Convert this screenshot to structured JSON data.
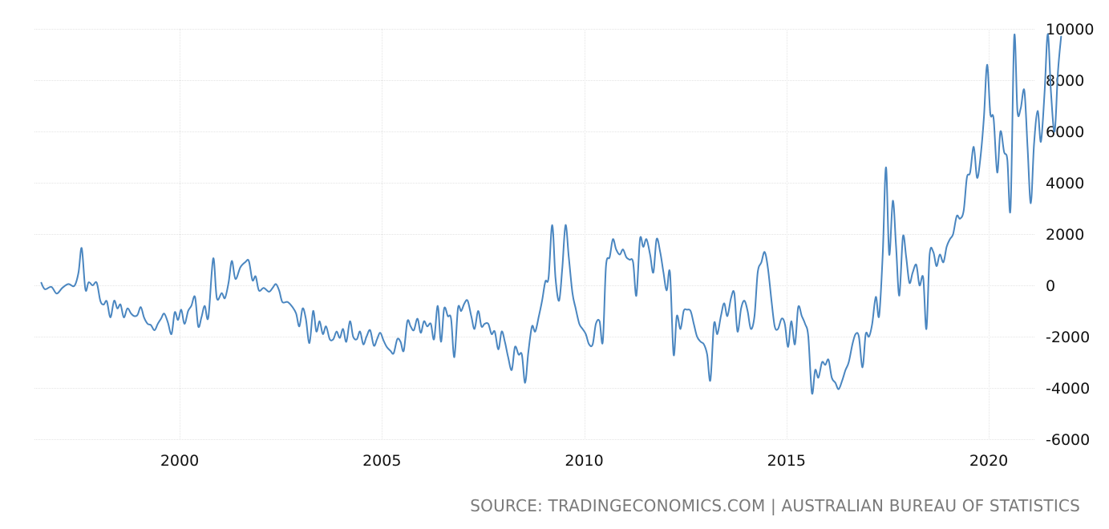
{
  "chart_data": {
    "type": "line",
    "title": "",
    "xlabel": "",
    "ylabel": "",
    "xlim": [
      1996.5,
      2021.6
    ],
    "ylim": [
      -6000,
      10000
    ],
    "x_ticks": [
      2000,
      2005,
      2010,
      2015,
      2020
    ],
    "x_tick_labels": [
      "2000",
      "2005",
      "2010",
      "2015",
      "2020"
    ],
    "y_ticks": [
      10000,
      8000,
      6000,
      4000,
      2000,
      0,
      -2000,
      -4000,
      -6000
    ],
    "y_tick_labels": [
      "10000",
      "8000",
      "6000",
      "4000",
      "2000",
      "0",
      "-2000",
      "-4000",
      "-6000"
    ],
    "grid": true,
    "series": [
      {
        "color": "#4a86c0",
        "points": [
          [
            1996.58,
            100
          ],
          [
            1996.67,
            -150
          ],
          [
            1996.83,
            -60
          ],
          [
            1996.96,
            -320
          ],
          [
            1997.1,
            -100
          ],
          [
            1997.25,
            50
          ],
          [
            1997.4,
            -20
          ],
          [
            1997.5,
            500
          ],
          [
            1997.58,
            1450
          ],
          [
            1997.67,
            -160
          ],
          [
            1997.75,
            120
          ],
          [
            1997.85,
            0
          ],
          [
            1997.95,
            100
          ],
          [
            1998.04,
            -600
          ],
          [
            1998.12,
            -750
          ],
          [
            1998.2,
            -620
          ],
          [
            1998.29,
            -1250
          ],
          [
            1998.38,
            -600
          ],
          [
            1998.46,
            -900
          ],
          [
            1998.54,
            -750
          ],
          [
            1998.62,
            -1250
          ],
          [
            1998.71,
            -900
          ],
          [
            1998.8,
            -1100
          ],
          [
            1998.88,
            -1200
          ],
          [
            1998.96,
            -1150
          ],
          [
            1999.04,
            -850
          ],
          [
            1999.12,
            -1250
          ],
          [
            1999.21,
            -1500
          ],
          [
            1999.29,
            -1550
          ],
          [
            1999.38,
            -1750
          ],
          [
            1999.46,
            -1500
          ],
          [
            1999.54,
            -1300
          ],
          [
            1999.62,
            -1100
          ],
          [
            1999.71,
            -1450
          ],
          [
            1999.8,
            -1900
          ],
          [
            1999.88,
            -1050
          ],
          [
            1999.96,
            -1350
          ],
          [
            2000.04,
            -950
          ],
          [
            2000.12,
            -1500
          ],
          [
            2000.21,
            -1000
          ],
          [
            2000.29,
            -800
          ],
          [
            2000.38,
            -450
          ],
          [
            2000.46,
            -1600
          ],
          [
            2000.54,
            -1250
          ],
          [
            2000.62,
            -800
          ],
          [
            2000.71,
            -1250
          ],
          [
            2000.83,
            1050
          ],
          [
            2000.92,
            -500
          ],
          [
            2001.04,
            -300
          ],
          [
            2001.12,
            -500
          ],
          [
            2001.21,
            100
          ],
          [
            2001.29,
            950
          ],
          [
            2001.38,
            250
          ],
          [
            2001.5,
            700
          ],
          [
            2001.62,
            900
          ],
          [
            2001.71,
            950
          ],
          [
            2001.8,
            200
          ],
          [
            2001.88,
            350
          ],
          [
            2001.96,
            -200
          ],
          [
            2002.08,
            -100
          ],
          [
            2002.21,
            -250
          ],
          [
            2002.3,
            -100
          ],
          [
            2002.38,
            50
          ],
          [
            2002.46,
            -200
          ],
          [
            2002.54,
            -650
          ],
          [
            2002.67,
            -650
          ],
          [
            2002.79,
            -850
          ],
          [
            2002.88,
            -1100
          ],
          [
            2002.96,
            -1600
          ],
          [
            2003.04,
            -900
          ],
          [
            2003.12,
            -1300
          ],
          [
            2003.21,
            -2250
          ],
          [
            2003.3,
            -1000
          ],
          [
            2003.38,
            -1800
          ],
          [
            2003.46,
            -1400
          ],
          [
            2003.54,
            -1900
          ],
          [
            2003.62,
            -1600
          ],
          [
            2003.71,
            -2100
          ],
          [
            2003.8,
            -2100
          ],
          [
            2003.88,
            -1800
          ],
          [
            2003.96,
            -2050
          ],
          [
            2004.04,
            -1700
          ],
          [
            2004.12,
            -2200
          ],
          [
            2004.21,
            -1400
          ],
          [
            2004.29,
            -2000
          ],
          [
            2004.38,
            -2100
          ],
          [
            2004.46,
            -1800
          ],
          [
            2004.54,
            -2300
          ],
          [
            2004.62,
            -2000
          ],
          [
            2004.71,
            -1750
          ],
          [
            2004.8,
            -2350
          ],
          [
            2004.88,
            -2100
          ],
          [
            2004.96,
            -1850
          ],
          [
            2005.04,
            -2150
          ],
          [
            2005.12,
            -2400
          ],
          [
            2005.21,
            -2550
          ],
          [
            2005.29,
            -2650
          ],
          [
            2005.38,
            -2100
          ],
          [
            2005.46,
            -2200
          ],
          [
            2005.54,
            -2550
          ],
          [
            2005.63,
            -1400
          ],
          [
            2005.71,
            -1600
          ],
          [
            2005.79,
            -1750
          ],
          [
            2005.88,
            -1300
          ],
          [
            2005.96,
            -1850
          ],
          [
            2006.04,
            -1400
          ],
          [
            2006.12,
            -1600
          ],
          [
            2006.21,
            -1500
          ],
          [
            2006.29,
            -2100
          ],
          [
            2006.38,
            -800
          ],
          [
            2006.46,
            -2200
          ],
          [
            2006.54,
            -900
          ],
          [
            2006.63,
            -1200
          ],
          [
            2006.71,
            -1300
          ],
          [
            2006.79,
            -2800
          ],
          [
            2006.88,
            -900
          ],
          [
            2006.96,
            -1000
          ],
          [
            2007.04,
            -700
          ],
          [
            2007.12,
            -600
          ],
          [
            2007.21,
            -1200
          ],
          [
            2007.29,
            -1700
          ],
          [
            2007.38,
            -1000
          ],
          [
            2007.46,
            -1600
          ],
          [
            2007.54,
            -1500
          ],
          [
            2007.63,
            -1500
          ],
          [
            2007.71,
            -1900
          ],
          [
            2007.79,
            -1800
          ],
          [
            2007.88,
            -2500
          ],
          [
            2007.96,
            -1800
          ],
          [
            2008.04,
            -2200
          ],
          [
            2008.12,
            -2800
          ],
          [
            2008.21,
            -3300
          ],
          [
            2008.29,
            -2400
          ],
          [
            2008.38,
            -2700
          ],
          [
            2008.46,
            -2700
          ],
          [
            2008.54,
            -3800
          ],
          [
            2008.62,
            -2600
          ],
          [
            2008.71,
            -1600
          ],
          [
            2008.79,
            -1800
          ],
          [
            2008.88,
            -1200
          ],
          [
            2008.96,
            -600
          ],
          [
            2009.04,
            150
          ],
          [
            2009.12,
            300
          ],
          [
            2009.21,
            2350
          ],
          [
            2009.29,
            300
          ],
          [
            2009.38,
            -600
          ],
          [
            2009.46,
            700
          ],
          [
            2009.54,
            2350
          ],
          [
            2009.62,
            1100
          ],
          [
            2009.71,
            -300
          ],
          [
            2009.79,
            -900
          ],
          [
            2009.88,
            -1500
          ],
          [
            2009.96,
            -1700
          ],
          [
            2010.04,
            -1900
          ],
          [
            2010.12,
            -2300
          ],
          [
            2010.21,
            -2300
          ],
          [
            2010.29,
            -1500
          ],
          [
            2010.38,
            -1400
          ],
          [
            2010.46,
            -2200
          ],
          [
            2010.54,
            750
          ],
          [
            2010.63,
            1100
          ],
          [
            2010.71,
            1800
          ],
          [
            2010.79,
            1400
          ],
          [
            2010.88,
            1200
          ],
          [
            2010.96,
            1400
          ],
          [
            2011.04,
            1100
          ],
          [
            2011.12,
            1000
          ],
          [
            2011.21,
            900
          ],
          [
            2011.29,
            -400
          ],
          [
            2011.38,
            1800
          ],
          [
            2011.46,
            1500
          ],
          [
            2011.54,
            1800
          ],
          [
            2011.63,
            1200
          ],
          [
            2011.71,
            500
          ],
          [
            2011.79,
            1800
          ],
          [
            2011.88,
            1300
          ],
          [
            2011.96,
            500
          ],
          [
            2012.04,
            -200
          ],
          [
            2012.12,
            500
          ],
          [
            2012.21,
            -2700
          ],
          [
            2012.29,
            -1200
          ],
          [
            2012.38,
            -1700
          ],
          [
            2012.46,
            -1000
          ],
          [
            2012.54,
            -950
          ],
          [
            2012.63,
            -1000
          ],
          [
            2012.71,
            -1500
          ],
          [
            2012.79,
            -2000
          ],
          [
            2012.88,
            -2200
          ],
          [
            2012.96,
            -2300
          ],
          [
            2013.04,
            -2700
          ],
          [
            2013.12,
            -3700
          ],
          [
            2013.21,
            -1500
          ],
          [
            2013.29,
            -1900
          ],
          [
            2013.38,
            -1200
          ],
          [
            2013.46,
            -700
          ],
          [
            2013.54,
            -1200
          ],
          [
            2013.63,
            -500
          ],
          [
            2013.71,
            -300
          ],
          [
            2013.79,
            -1800
          ],
          [
            2013.88,
            -900
          ],
          [
            2013.96,
            -600
          ],
          [
            2014.04,
            -1000
          ],
          [
            2014.12,
            -1700
          ],
          [
            2014.21,
            -1200
          ],
          [
            2014.29,
            500
          ],
          [
            2014.38,
            900
          ],
          [
            2014.46,
            1300
          ],
          [
            2014.54,
            700
          ],
          [
            2014.63,
            -600
          ],
          [
            2014.71,
            -1600
          ],
          [
            2014.79,
            -1700
          ],
          [
            2014.88,
            -1300
          ],
          [
            2014.96,
            -1500
          ],
          [
            2015.04,
            -2400
          ],
          [
            2015.12,
            -1400
          ],
          [
            2015.21,
            -2300
          ],
          [
            2015.29,
            -850
          ],
          [
            2015.38,
            -1200
          ],
          [
            2015.46,
            -1500
          ],
          [
            2015.54,
            -2000
          ],
          [
            2015.63,
            -4200
          ],
          [
            2015.71,
            -3300
          ],
          [
            2015.79,
            -3600
          ],
          [
            2015.88,
            -3000
          ],
          [
            2015.96,
            -3100
          ],
          [
            2016.04,
            -2900
          ],
          [
            2016.12,
            -3600
          ],
          [
            2016.21,
            -3800
          ],
          [
            2016.29,
            -4050
          ],
          [
            2016.38,
            -3700
          ],
          [
            2016.46,
            -3300
          ],
          [
            2016.54,
            -3000
          ],
          [
            2016.63,
            -2300
          ],
          [
            2016.71,
            -1900
          ],
          [
            2016.79,
            -2000
          ],
          [
            2016.88,
            -3200
          ],
          [
            2016.96,
            -1900
          ],
          [
            2017.04,
            -2000
          ],
          [
            2017.12,
            -1500
          ],
          [
            2017.21,
            -450
          ],
          [
            2017.29,
            -1200
          ],
          [
            2017.38,
            1200
          ],
          [
            2017.46,
            4600
          ],
          [
            2017.54,
            1200
          ],
          [
            2017.63,
            3300
          ],
          [
            2017.71,
            1500
          ],
          [
            2017.79,
            -400
          ],
          [
            2017.88,
            1900
          ],
          [
            2017.96,
            1100
          ],
          [
            2018.04,
            100
          ],
          [
            2018.12,
            500
          ],
          [
            2018.21,
            800
          ],
          [
            2018.29,
            0
          ],
          [
            2018.38,
            300
          ],
          [
            2018.46,
            -1700
          ],
          [
            2018.54,
            1200
          ],
          [
            2018.63,
            1300
          ],
          [
            2018.71,
            750
          ],
          [
            2018.79,
            1200
          ],
          [
            2018.88,
            900
          ],
          [
            2018.96,
            1500
          ],
          [
            2019.04,
            1800
          ],
          [
            2019.12,
            2000
          ],
          [
            2019.21,
            2700
          ],
          [
            2019.29,
            2600
          ],
          [
            2019.38,
            2900
          ],
          [
            2019.46,
            4200
          ],
          [
            2019.54,
            4400
          ],
          [
            2019.63,
            5400
          ],
          [
            2019.71,
            4200
          ],
          [
            2019.79,
            4900
          ],
          [
            2019.88,
            6500
          ],
          [
            2019.96,
            8600
          ],
          [
            2020.04,
            6700
          ],
          [
            2020.12,
            6500
          ],
          [
            2020.21,
            4400
          ],
          [
            2020.29,
            6000
          ],
          [
            2020.38,
            5200
          ],
          [
            2020.46,
            4900
          ],
          [
            2020.54,
            3000
          ],
          [
            2020.63,
            9700
          ],
          [
            2020.71,
            6800
          ],
          [
            2020.79,
            6900
          ],
          [
            2020.88,
            7600
          ],
          [
            2020.96,
            5400
          ],
          [
            2021.04,
            3200
          ],
          [
            2021.12,
            5500
          ],
          [
            2021.21,
            6800
          ],
          [
            2021.29,
            5600
          ],
          [
            2021.38,
            7500
          ],
          [
            2021.46,
            9800
          ],
          [
            2021.54,
            7500
          ],
          [
            2021.63,
            6000
          ],
          [
            2021.71,
            8300
          ],
          [
            2021.79,
            9700
          ]
        ]
      }
    ]
  },
  "source_text": "SOURCE: TRADINGECONOMICS.COM | AUSTRALIAN BUREAU OF STATISTICS"
}
